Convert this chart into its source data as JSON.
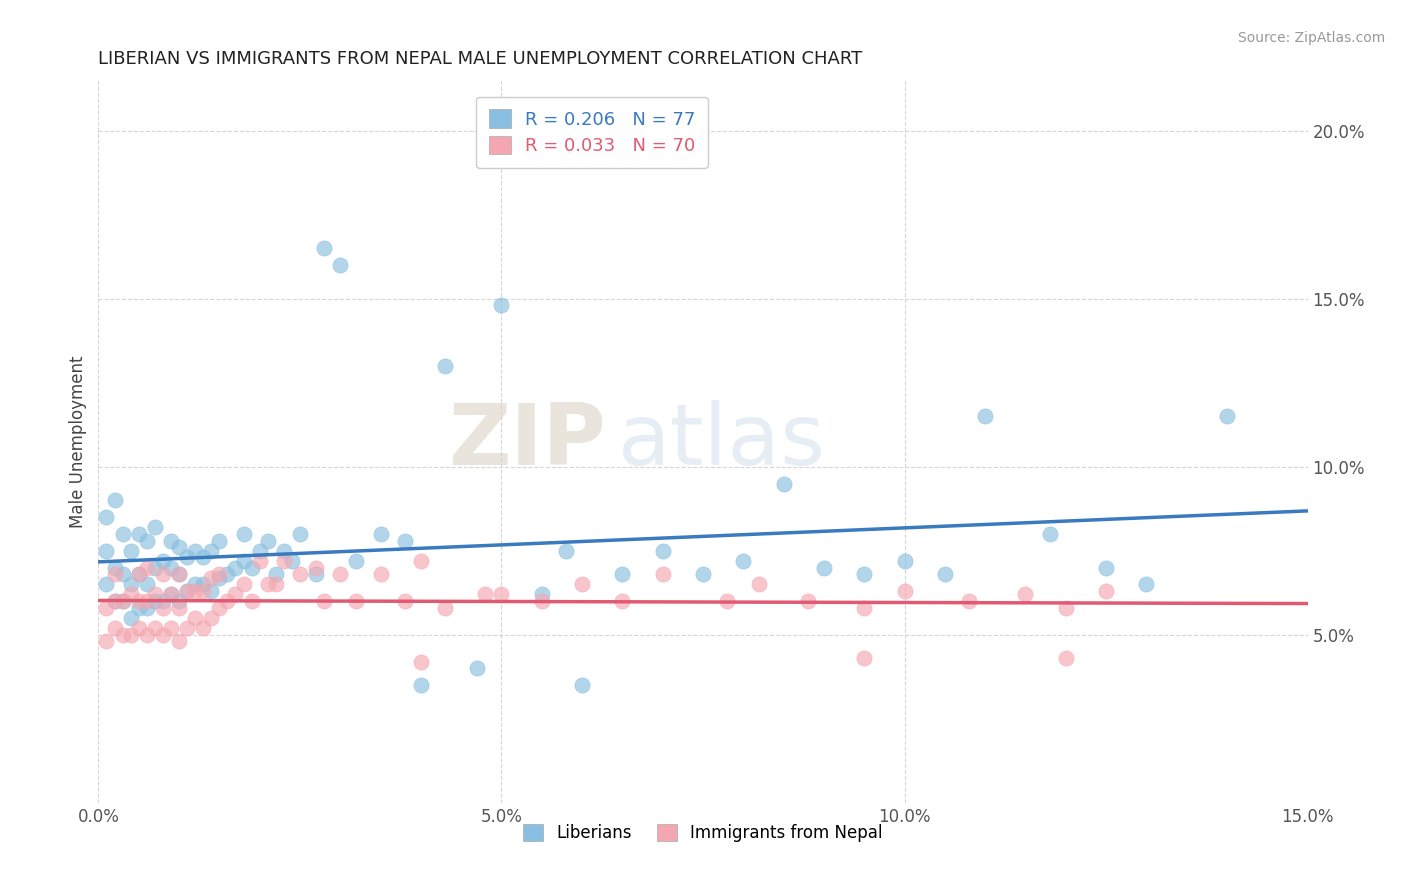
{
  "title": "LIBERIAN VS IMMIGRANTS FROM NEPAL MALE UNEMPLOYMENT CORRELATION CHART",
  "source": "Source: ZipAtlas.com",
  "ylabel": "Male Unemployment",
  "xlim": [
    0.0,
    0.15
  ],
  "ylim": [
    0.0,
    0.215
  ],
  "x_ticks": [
    0.0,
    0.05,
    0.1,
    0.15
  ],
  "x_tick_labels": [
    "0.0%",
    "5.0%",
    "10.0%",
    "15.0%"
  ],
  "y_ticks": [
    0.05,
    0.1,
    0.15,
    0.2
  ],
  "y_tick_labels": [
    "5.0%",
    "10.0%",
    "15.0%",
    "20.0%"
  ],
  "liberian_color": "#89bfe0",
  "nepal_color": "#f4a7b0",
  "liberian_line_color": "#3a7abf",
  "nepal_line_color": "#e05a72",
  "liberian_R": 0.206,
  "liberian_N": 77,
  "nepal_R": 0.033,
  "nepal_N": 70,
  "watermark_zip": "ZIP",
  "watermark_atlas": "atlas",
  "liberian_x": [
    0.001,
    0.001,
    0.001,
    0.002,
    0.002,
    0.002,
    0.003,
    0.003,
    0.003,
    0.004,
    0.004,
    0.004,
    0.005,
    0.005,
    0.005,
    0.006,
    0.006,
    0.006,
    0.007,
    0.007,
    0.007,
    0.008,
    0.008,
    0.009,
    0.009,
    0.009,
    0.01,
    0.01,
    0.01,
    0.011,
    0.011,
    0.012,
    0.012,
    0.013,
    0.013,
    0.014,
    0.014,
    0.015,
    0.015,
    0.016,
    0.017,
    0.018,
    0.018,
    0.019,
    0.02,
    0.021,
    0.022,
    0.023,
    0.024,
    0.025,
    0.027,
    0.028,
    0.03,
    0.032,
    0.035,
    0.038,
    0.04,
    0.043,
    0.047,
    0.05,
    0.055,
    0.058,
    0.06,
    0.065,
    0.07,
    0.075,
    0.08,
    0.085,
    0.09,
    0.095,
    0.1,
    0.105,
    0.11,
    0.118,
    0.125,
    0.13,
    0.14
  ],
  "liberian_y": [
    0.065,
    0.075,
    0.085,
    0.06,
    0.07,
    0.09,
    0.06,
    0.068,
    0.08,
    0.055,
    0.065,
    0.075,
    0.058,
    0.068,
    0.08,
    0.058,
    0.065,
    0.078,
    0.06,
    0.07,
    0.082,
    0.06,
    0.072,
    0.062,
    0.07,
    0.078,
    0.06,
    0.068,
    0.076,
    0.063,
    0.073,
    0.065,
    0.075,
    0.065,
    0.073,
    0.063,
    0.075,
    0.067,
    0.078,
    0.068,
    0.07,
    0.072,
    0.08,
    0.07,
    0.075,
    0.078,
    0.068,
    0.075,
    0.072,
    0.08,
    0.068,
    0.165,
    0.16,
    0.072,
    0.08,
    0.078,
    0.035,
    0.13,
    0.04,
    0.148,
    0.062,
    0.075,
    0.035,
    0.068,
    0.075,
    0.068,
    0.072,
    0.095,
    0.07,
    0.068,
    0.072,
    0.068,
    0.115,
    0.08,
    0.07,
    0.065,
    0.115
  ],
  "nepal_x": [
    0.001,
    0.001,
    0.002,
    0.002,
    0.002,
    0.003,
    0.003,
    0.004,
    0.004,
    0.005,
    0.005,
    0.005,
    0.006,
    0.006,
    0.006,
    0.007,
    0.007,
    0.008,
    0.008,
    0.008,
    0.009,
    0.009,
    0.01,
    0.01,
    0.01,
    0.011,
    0.011,
    0.012,
    0.012,
    0.013,
    0.013,
    0.014,
    0.014,
    0.015,
    0.015,
    0.016,
    0.017,
    0.018,
    0.019,
    0.02,
    0.021,
    0.022,
    0.023,
    0.025,
    0.027,
    0.028,
    0.03,
    0.032,
    0.035,
    0.038,
    0.04,
    0.043,
    0.048,
    0.05,
    0.055,
    0.06,
    0.065,
    0.07,
    0.078,
    0.082,
    0.088,
    0.095,
    0.1,
    0.108,
    0.115,
    0.12,
    0.125,
    0.095,
    0.04,
    0.12
  ],
  "nepal_y": [
    0.048,
    0.058,
    0.052,
    0.06,
    0.068,
    0.05,
    0.06,
    0.05,
    0.062,
    0.052,
    0.06,
    0.068,
    0.05,
    0.06,
    0.07,
    0.052,
    0.062,
    0.05,
    0.058,
    0.068,
    0.052,
    0.062,
    0.048,
    0.058,
    0.068,
    0.052,
    0.063,
    0.055,
    0.063,
    0.052,
    0.063,
    0.055,
    0.067,
    0.058,
    0.068,
    0.06,
    0.062,
    0.065,
    0.06,
    0.072,
    0.065,
    0.065,
    0.072,
    0.068,
    0.07,
    0.06,
    0.068,
    0.06,
    0.068,
    0.06,
    0.072,
    0.058,
    0.062,
    0.062,
    0.06,
    0.065,
    0.06,
    0.068,
    0.06,
    0.065,
    0.06,
    0.058,
    0.063,
    0.06,
    0.062,
    0.058,
    0.063,
    0.043,
    0.042,
    0.043
  ]
}
